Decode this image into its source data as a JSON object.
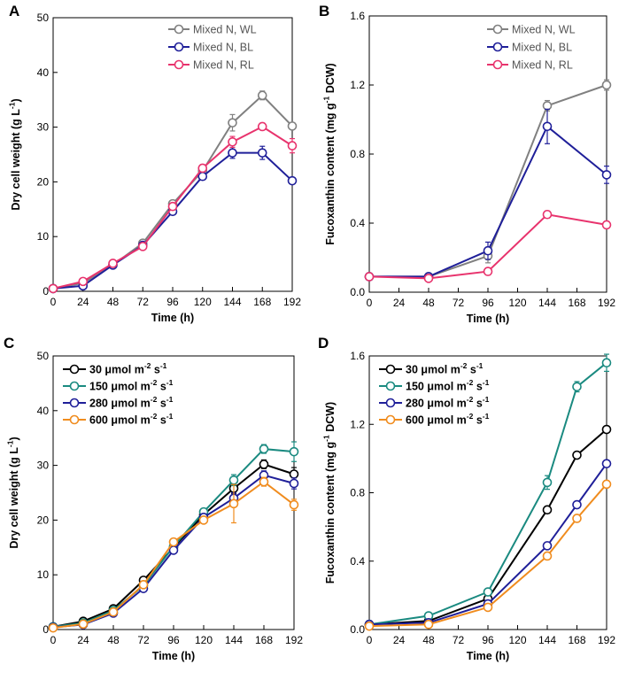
{
  "figure": {
    "chart_data": [
      {
        "panel": "A",
        "type": "line",
        "xlabel": "Time (h)",
        "ylabel": "Dry cell weight (g L⁻¹)",
        "xlim": [
          0,
          192
        ],
        "ylim": [
          0,
          50
        ],
        "xticks": [
          0,
          24,
          48,
          72,
          96,
          120,
          144,
          168,
          192
        ],
        "yticks": [
          0,
          10,
          20,
          30,
          40,
          50
        ],
        "ytick_labels": [
          "0",
          "10",
          "20",
          "30",
          "40",
          "50"
        ],
        "legend_position": "top-right",
        "legend_style": "plain",
        "series": [
          {
            "name": "Mixed N, WL",
            "color": "#808080",
            "x": [
              0,
              24,
              48,
              72,
              96,
              120,
              144,
              168,
              192
            ],
            "values": [
              0.5,
              1.5,
              4.8,
              8.8,
              16.0,
              22.0,
              30.8,
              35.8,
              30.2
            ],
            "errors": [
              0.2,
              0.3,
              0.4,
              0.5,
              0.6,
              0.6,
              1.5,
              0.8,
              0.6
            ]
          },
          {
            "name": "Mixed N, BL",
            "color": "#1f1f99",
            "x": [
              0,
              24,
              48,
              72,
              96,
              120,
              144,
              168,
              192
            ],
            "values": [
              0.5,
              1.0,
              4.8,
              8.4,
              14.6,
              21.0,
              25.3,
              25.3,
              20.2
            ],
            "errors": [
              0.2,
              0.3,
              0.4,
              0.5,
              0.6,
              0.6,
              1.0,
              1.2,
              0.5
            ]
          },
          {
            "name": "Mixed N, RL",
            "color": "#e8336d",
            "x": [
              0,
              24,
              48,
              72,
              96,
              120,
              144,
              168,
              192
            ],
            "values": [
              0.5,
              1.8,
              5.1,
              8.2,
              15.5,
              22.5,
              27.3,
              30.1,
              26.6
            ],
            "errors": [
              0.2,
              0.3,
              0.4,
              0.5,
              0.6,
              0.6,
              1.0,
              0.6,
              1.3
            ]
          }
        ]
      },
      {
        "panel": "B",
        "type": "line",
        "xlabel": "Time (h)",
        "ylabel": "Fucoxanthin content (mg g⁻¹ DCW)",
        "xlim": [
          0,
          192
        ],
        "ylim": [
          0,
          1.6
        ],
        "xticks": [
          0,
          24,
          48,
          72,
          96,
          120,
          144,
          168,
          192
        ],
        "yticks": [
          0,
          0.4,
          0.8,
          1.2,
          1.6
        ],
        "ytick_labels": [
          "0.0",
          "0.4",
          "0.8",
          "1.2",
          "1.6"
        ],
        "legend_position": "top-right",
        "legend_style": "plain",
        "series": [
          {
            "name": "Mixed N, WL",
            "color": "#808080",
            "x": [
              0,
              48,
              96,
              144,
              192
            ],
            "values": [
              0.09,
              0.09,
              0.21,
              1.08,
              1.2
            ],
            "errors": [
              0.01,
              0.01,
              0.04,
              0.03,
              0.03
            ]
          },
          {
            "name": "Mixed N, BL",
            "color": "#1f1f99",
            "x": [
              0,
              48,
              96,
              144,
              192
            ],
            "values": [
              0.09,
              0.09,
              0.24,
              0.96,
              0.68
            ],
            "errors": [
              0.01,
              0.01,
              0.05,
              0.1,
              0.05
            ]
          },
          {
            "name": "Mixed N, RL",
            "color": "#e8336d",
            "x": [
              0,
              48,
              96,
              144,
              192
            ],
            "values": [
              0.09,
              0.08,
              0.12,
              0.45,
              0.39
            ],
            "errors": [
              0.01,
              0.01,
              0.02,
              0.02,
              0.02
            ]
          }
        ]
      },
      {
        "panel": "C",
        "type": "line",
        "xlabel": "Time (h)",
        "ylabel": "Dry cell weight (g L⁻¹)",
        "xlim": [
          0,
          192
        ],
        "ylim": [
          0,
          50
        ],
        "xticks": [
          0,
          24,
          48,
          72,
          96,
          120,
          144,
          168,
          192
        ],
        "yticks": [
          0,
          10,
          20,
          30,
          40,
          50
        ],
        "ytick_labels": [
          "0",
          "10",
          "20",
          "30",
          "40",
          "50"
        ],
        "legend_position": "top-left",
        "legend_style": "light",
        "series": [
          {
            "name": "30 μmol m⁻² s⁻¹",
            "color": "#000000",
            "x": [
              0,
              24,
              48,
              72,
              96,
              120,
              144,
              168,
              192
            ],
            "values": [
              0.5,
              1.5,
              3.8,
              9.0,
              15.0,
              21.0,
              25.8,
              30.2,
              28.4
            ],
            "errors": [
              0.2,
              0.3,
              0.4,
              0.5,
              0.6,
              0.6,
              1.0,
              0.8,
              1.2
            ]
          },
          {
            "name": "150 μmol m⁻² s⁻¹",
            "color": "#1a8a80",
            "x": [
              0,
              24,
              48,
              72,
              96,
              120,
              144,
              168,
              192
            ],
            "values": [
              0.5,
              1.2,
              3.5,
              8.0,
              15.2,
              21.5,
              27.3,
              33.0,
              32.5
            ],
            "errors": [
              0.2,
              0.3,
              0.4,
              0.5,
              0.6,
              0.6,
              1.0,
              0.8,
              1.8
            ]
          },
          {
            "name": "280 μmol m⁻² s⁻¹",
            "color": "#1f1f99",
            "x": [
              0,
              24,
              48,
              72,
              96,
              120,
              144,
              168,
              192
            ],
            "values": [
              0.4,
              0.9,
              3.0,
              7.5,
              14.5,
              20.5,
              24.0,
              28.2,
              26.7
            ],
            "errors": [
              0.2,
              0.3,
              0.4,
              0.5,
              0.6,
              0.6,
              1.0,
              0.8,
              1.0
            ]
          },
          {
            "name": "600 μmol m⁻² s⁻¹",
            "color": "#f08c1e",
            "x": [
              0,
              24,
              48,
              72,
              96,
              120,
              144,
              168,
              192
            ],
            "values": [
              0.3,
              1.0,
              3.2,
              8.2,
              16.0,
              20.0,
              23.0,
              27.0,
              22.8
            ],
            "errors": [
              0.2,
              0.3,
              0.4,
              0.5,
              0.6,
              0.6,
              3.5,
              0.8,
              1.0
            ]
          }
        ]
      },
      {
        "panel": "D",
        "type": "line",
        "xlabel": "Time (h)",
        "ylabel": "Fucoxanthin content (mg g⁻¹ DCW)",
        "xlim": [
          0,
          192
        ],
        "ylim": [
          0,
          1.6
        ],
        "xticks": [
          0,
          24,
          48,
          72,
          96,
          120,
          144,
          168,
          192
        ],
        "yticks": [
          0,
          0.4,
          0.8,
          1.2,
          1.6
        ],
        "ytick_labels": [
          "0.0",
          "0.4",
          "0.8",
          "1.2",
          "1.6"
        ],
        "legend_position": "top-left",
        "legend_style": "light",
        "series": [
          {
            "name": "30 μmol m⁻² s⁻¹",
            "color": "#000000",
            "x": [
              0,
              48,
              96,
              144,
              168,
              192
            ],
            "values": [
              0.03,
              0.05,
              0.18,
              0.7,
              1.02,
              1.17
            ],
            "errors": [
              0.01,
              0.01,
              0.02,
              0.02,
              0.02,
              0.02
            ]
          },
          {
            "name": "150 μmol m⁻² s⁻¹",
            "color": "#1a8a80",
            "x": [
              0,
              48,
              96,
              144,
              168,
              192
            ],
            "values": [
              0.03,
              0.08,
              0.22,
              0.86,
              1.42,
              1.56
            ],
            "errors": [
              0.01,
              0.02,
              0.02,
              0.04,
              0.03,
              0.05
            ]
          },
          {
            "name": "280 μmol m⁻² s⁻¹",
            "color": "#1f1f99",
            "x": [
              0,
              48,
              96,
              144,
              168,
              192
            ],
            "values": [
              0.03,
              0.04,
              0.15,
              0.49,
              0.73,
              0.97
            ],
            "errors": [
              0.01,
              0.01,
              0.02,
              0.02,
              0.02,
              0.02
            ]
          },
          {
            "name": "600 μmol m⁻² s⁻¹",
            "color": "#f08c1e",
            "x": [
              0,
              48,
              96,
              144,
              168,
              192
            ],
            "values": [
              0.02,
              0.03,
              0.13,
              0.43,
              0.65,
              0.85
            ],
            "errors": [
              0.01,
              0.01,
              0.02,
              0.02,
              0.02,
              0.02
            ]
          }
        ]
      }
    ]
  }
}
